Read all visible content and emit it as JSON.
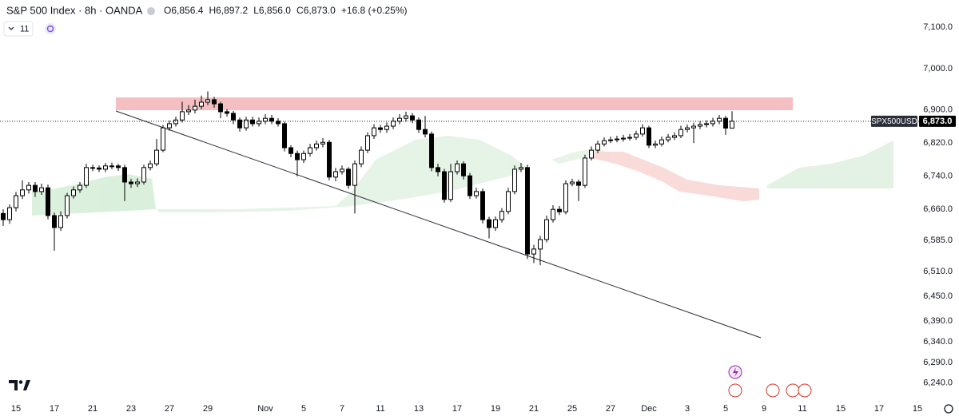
{
  "header": {
    "symbol": "S&P 500 Index · 8h · OANDA",
    "ohlc": [
      {
        "label": "O",
        "value": "6,856.4"
      },
      {
        "label": "H",
        "value": "6,897.2"
      },
      {
        "label": "L",
        "value": "6,856.0"
      },
      {
        "label": "C",
        "value": "6,873.0"
      }
    ],
    "change": "+16.8 (+0.25%)",
    "indicators": "11"
  },
  "chart_data": {
    "type": "candlestick",
    "symbol_tag": "SPX500USD",
    "last_price": {
      "value": 6873.0,
      "label": "6,873.0"
    },
    "up_color": "#ffffff",
    "down_color": "#000000",
    "wick_color": "#000000",
    "xlim": [
      -0.5,
      144.5
    ],
    "ylim": [
      6201,
      7166
    ],
    "xticks": [
      {
        "value": 2,
        "label": "15"
      },
      {
        "value": 8,
        "label": "17"
      },
      {
        "value": 14,
        "label": "21"
      },
      {
        "value": 20,
        "label": "23"
      },
      {
        "value": 26,
        "label": "27"
      },
      {
        "value": 32,
        "label": "29"
      },
      {
        "value": 41,
        "label": "Nov"
      },
      {
        "value": 47,
        "label": "5"
      },
      {
        "value": 53,
        "label": "7"
      },
      {
        "value": 59,
        "label": "11"
      },
      {
        "value": 65,
        "label": "13"
      },
      {
        "value": 71,
        "label": "17"
      },
      {
        "value": 77,
        "label": "19"
      },
      {
        "value": 83,
        "label": "21"
      },
      {
        "value": 89,
        "label": "25"
      },
      {
        "value": 95,
        "label": "27"
      },
      {
        "value": 101,
        "label": "Dec"
      },
      {
        "value": 107,
        "label": "3"
      },
      {
        "value": 113,
        "label": "5"
      },
      {
        "value": 119,
        "label": "9"
      },
      {
        "value": 125,
        "label": "11"
      },
      {
        "value": 131,
        "label": "15"
      },
      {
        "value": 137,
        "label": "17"
      },
      {
        "value": 143,
        "label": "15"
      }
    ],
    "yticks": [
      {
        "value": 7100,
        "label": "7,100.0"
      },
      {
        "value": 7000,
        "label": "7,000.0"
      },
      {
        "value": 6900,
        "label": "6,900.0"
      },
      {
        "value": 6820,
        "label": "6,820.0"
      },
      {
        "value": 6740,
        "label": "6,740.0"
      },
      {
        "value": 6660,
        "label": "6,660.0"
      },
      {
        "value": 6585,
        "label": "6,585.0"
      },
      {
        "value": 6510,
        "label": "6,510.0"
      },
      {
        "value": 6450,
        "label": "6,450.0"
      },
      {
        "value": 6390,
        "label": "6,390.0"
      },
      {
        "value": 6340,
        "label": "6,340.0"
      },
      {
        "value": 6290,
        "label": "6,290.0"
      },
      {
        "value": 6240,
        "label": "6,240.0"
      }
    ],
    "open": [
      6650,
      6635,
      6664,
      6693,
      6707,
      6718,
      6703,
      6712,
      6645,
      6616,
      6645,
      6693,
      6707,
      6718,
      6761,
      6760,
      6757,
      6765,
      6765,
      6761,
      6726,
      6722,
      6726,
      6761,
      6770,
      6803,
      6857,
      6867,
      6876,
      6896,
      6900,
      6909,
      6919,
      6925,
      6915,
      6896,
      6892,
      6876,
      6857,
      6876,
      6867,
      6873,
      6880,
      6873,
      6867,
      6809,
      6795,
      6780,
      6795,
      6809,
      6818,
      6822,
      6738,
      6751,
      6757,
      6718,
      6770,
      6803,
      6838,
      6857,
      6853,
      6861,
      6873,
      6880,
      6886,
      6876,
      6853,
      6842,
      6761,
      6751,
      6684,
      6751,
      6770,
      6741,
      6693,
      6703,
      6635,
      6616,
      6635,
      6655,
      6703,
      6757,
      6761,
      6552,
      6564,
      6587,
      6635,
      6660,
      6654,
      6722,
      6726,
      6718,
      6784,
      6803,
      6818,
      6826,
      6828,
      6830,
      6832,
      6834,
      6842,
      6857,
      6815,
      6818,
      6828,
      6834,
      6838,
      6853,
      6857,
      6861,
      6865,
      6867,
      6873,
      6880,
      6856.4
    ],
    "high": [
      6660,
      6672,
      6702,
      6730,
      6726,
      6726,
      6722,
      6720,
      6652,
      6655,
      6700,
      6715,
      6726,
      6770,
      6768,
      6766,
      6772,
      6773,
      6770,
      6768,
      6734,
      6735,
      6768,
      6778,
      6830,
      6864,
      6874,
      6884,
      6920,
      6912,
      6925,
      6935,
      6945,
      6932,
      6920,
      6902,
      6898,
      6882,
      6884,
      6884,
      6882,
      6890,
      6888,
      6880,
      6872,
      6815,
      6802,
      6802,
      6818,
      6826,
      6832,
      6828,
      6760,
      6766,
      6762,
      6778,
      6812,
      6846,
      6866,
      6864,
      6870,
      6882,
      6890,
      6896,
      6893,
      6882,
      6886,
      6848,
      6770,
      6758,
      6770,
      6778,
      6776,
      6748,
      6712,
      6710,
      6642,
      6643,
      6663,
      6712,
      6766,
      6772,
      6768,
      6574,
      6596,
      6645,
      6670,
      6668,
      6730,
      6734,
      6732,
      6792,
      6812,
      6826,
      6834,
      6836,
      6838,
      6840,
      6842,
      6850,
      6866,
      6862,
      6826,
      6836,
      6842,
      6846,
      6862,
      6865,
      6869,
      6873,
      6875,
      6881,
      6888,
      6886,
      6897.2
    ],
    "low": [
      6620,
      6625,
      6655,
      6685,
      6698,
      6690,
      6695,
      6636,
      6560,
      6608,
      6638,
      6686,
      6700,
      6712,
      6752,
      6750,
      6750,
      6757,
      6753,
      6680,
      6712,
      6714,
      6720,
      6754,
      6764,
      6798,
      6850,
      6860,
      6870,
      6888,
      6892,
      6902,
      6912,
      6906,
      6880,
      6884,
      6866,
      6848,
      6850,
      6860,
      6860,
      6866,
      6866,
      6860,
      6800,
      6786,
      6740,
      6772,
      6788,
      6802,
      6810,
      6730,
      6728,
      6744,
      6710,
      6650,
      6762,
      6796,
      6830,
      6845,
      6845,
      6854,
      6866,
      6872,
      6868,
      6845,
      6834,
      6752,
      6740,
      6676,
      6678,
      6744,
      6732,
      6685,
      6686,
      6626,
      6590,
      6608,
      6628,
      6648,
      6696,
      6750,
      6540,
      6530,
      6525,
      6580,
      6628,
      6646,
      6648,
      6716,
      6680,
      6712,
      6778,
      6796,
      6812,
      6820,
      6822,
      6824,
      6826,
      6828,
      6836,
      6808,
      6808,
      6812,
      6822,
      6828,
      6832,
      6846,
      6820,
      6854,
      6858,
      6860,
      6866,
      6840,
      6856.0
    ],
    "close": [
      6635,
      6664,
      6693,
      6707,
      6718,
      6703,
      6712,
      6645,
      6616,
      6645,
      6693,
      6707,
      6718,
      6761,
      6760,
      6757,
      6765,
      6765,
      6761,
      6726,
      6722,
      6726,
      6761,
      6770,
      6803,
      6857,
      6867,
      6876,
      6896,
      6900,
      6909,
      6919,
      6925,
      6915,
      6896,
      6892,
      6876,
      6857,
      6876,
      6867,
      6873,
      6880,
      6873,
      6867,
      6809,
      6795,
      6780,
      6795,
      6809,
      6818,
      6822,
      6738,
      6751,
      6757,
      6718,
      6770,
      6803,
      6838,
      6857,
      6853,
      6861,
      6873,
      6880,
      6886,
      6876,
      6853,
      6842,
      6761,
      6751,
      6684,
      6751,
      6770,
      6741,
      6693,
      6703,
      6635,
      6616,
      6635,
      6655,
      6703,
      6757,
      6761,
      6552,
      6564,
      6587,
      6635,
      6660,
      6654,
      6722,
      6726,
      6718,
      6784,
      6803,
      6818,
      6826,
      6828,
      6830,
      6832,
      6834,
      6842,
      6857,
      6815,
      6818,
      6828,
      6834,
      6838,
      6853,
      6857,
      6861,
      6865,
      6867,
      6873,
      6880,
      6856.4,
      6873.0
    ]
  }
}
